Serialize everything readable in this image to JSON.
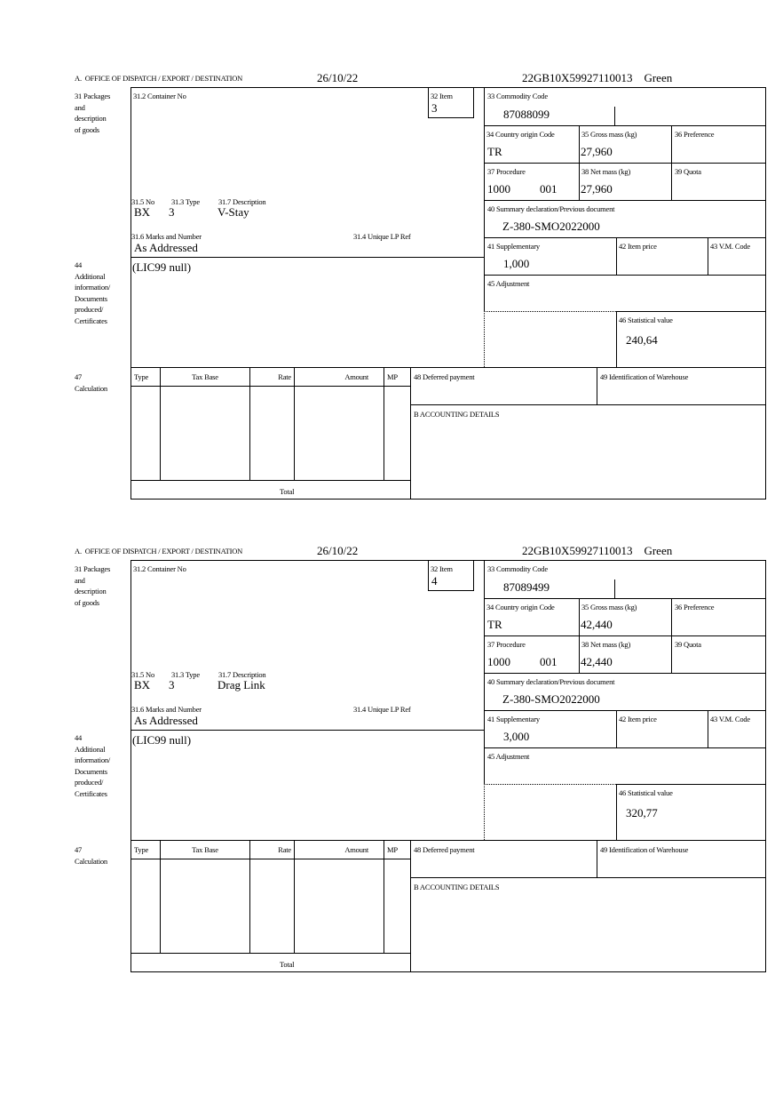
{
  "labels": {
    "office": "A.  OFFICE OF DISPATCH / EXPORT / DESTINATION",
    "packages": "31 Packages\nand\ndescription\nof goods",
    "container_no": "31.2 Container No",
    "item": "32 Item",
    "no": "31.5 No",
    "type": "31.3 Type",
    "description": "31.7 Description",
    "marks": "31.6 Marks and Number",
    "unique_lp_ref": "31.4 Unique LP Ref",
    "additional_info": "44\nAdditional\ninformation/\nDocuments\nproduced/\nCertificates",
    "calculation": "47\nCalculation",
    "calc_type": "Type",
    "calc_tax_base": "Tax Base",
    "calc_rate": "Rate",
    "calc_amount": "Amount",
    "calc_mp": "MP",
    "total": "Total",
    "deferred_payment": "48 Deferred payment",
    "warehouse": "49 Identification of Warehouse",
    "accounting": "B ACCOUNTING DETAILS",
    "commodity_code": "33 Commodity Code",
    "country_origin": "34 Country origin Code",
    "gross_mass": "35 Gross mass (kg)",
    "preference": "36 Preference",
    "procedure": "37 Procedure",
    "net_mass": "38 Net mass (kg)",
    "quota": "39 Quota",
    "summary_decl": "40 Summary declaration/Previous document",
    "supplementary": "41 Supplementary",
    "item_price": "42 Item price",
    "vm_code": "43 V.M. Code",
    "adjustment": "45 Adjustment",
    "statistical_value": "46 Statistical value"
  },
  "forms": [
    {
      "date": "26/10/22",
      "reference": "22GB10X59927110013    Green",
      "item": "3",
      "pkg_kind": "BX",
      "pkg_count": "3",
      "description": "V-Stay",
      "marks": "As Addressed",
      "additional_info": "(LIC99 null)",
      "commodity_code": "87088099",
      "country_origin": "TR",
      "gross_mass": "27,960",
      "procedure": "1000",
      "procedure_ext": "001",
      "net_mass": "27,960",
      "summary_decl": "Z-380-SMO2022000",
      "supplementary": "1,000",
      "statistical_value": "240,64"
    },
    {
      "date": "26/10/22",
      "reference": "22GB10X59927110013    Green",
      "item": "4",
      "pkg_kind": "BX",
      "pkg_count": "3",
      "description": "Drag Link",
      "marks": "As Addressed",
      "additional_info": "(LIC99 null)",
      "commodity_code": "87089499",
      "country_origin": "TR",
      "gross_mass": "42,440",
      "procedure": "1000",
      "procedure_ext": "001",
      "net_mass": "42,440",
      "summary_decl": "Z-380-SMO2022000",
      "supplementary": "3,000",
      "statistical_value": "320,77"
    }
  ]
}
